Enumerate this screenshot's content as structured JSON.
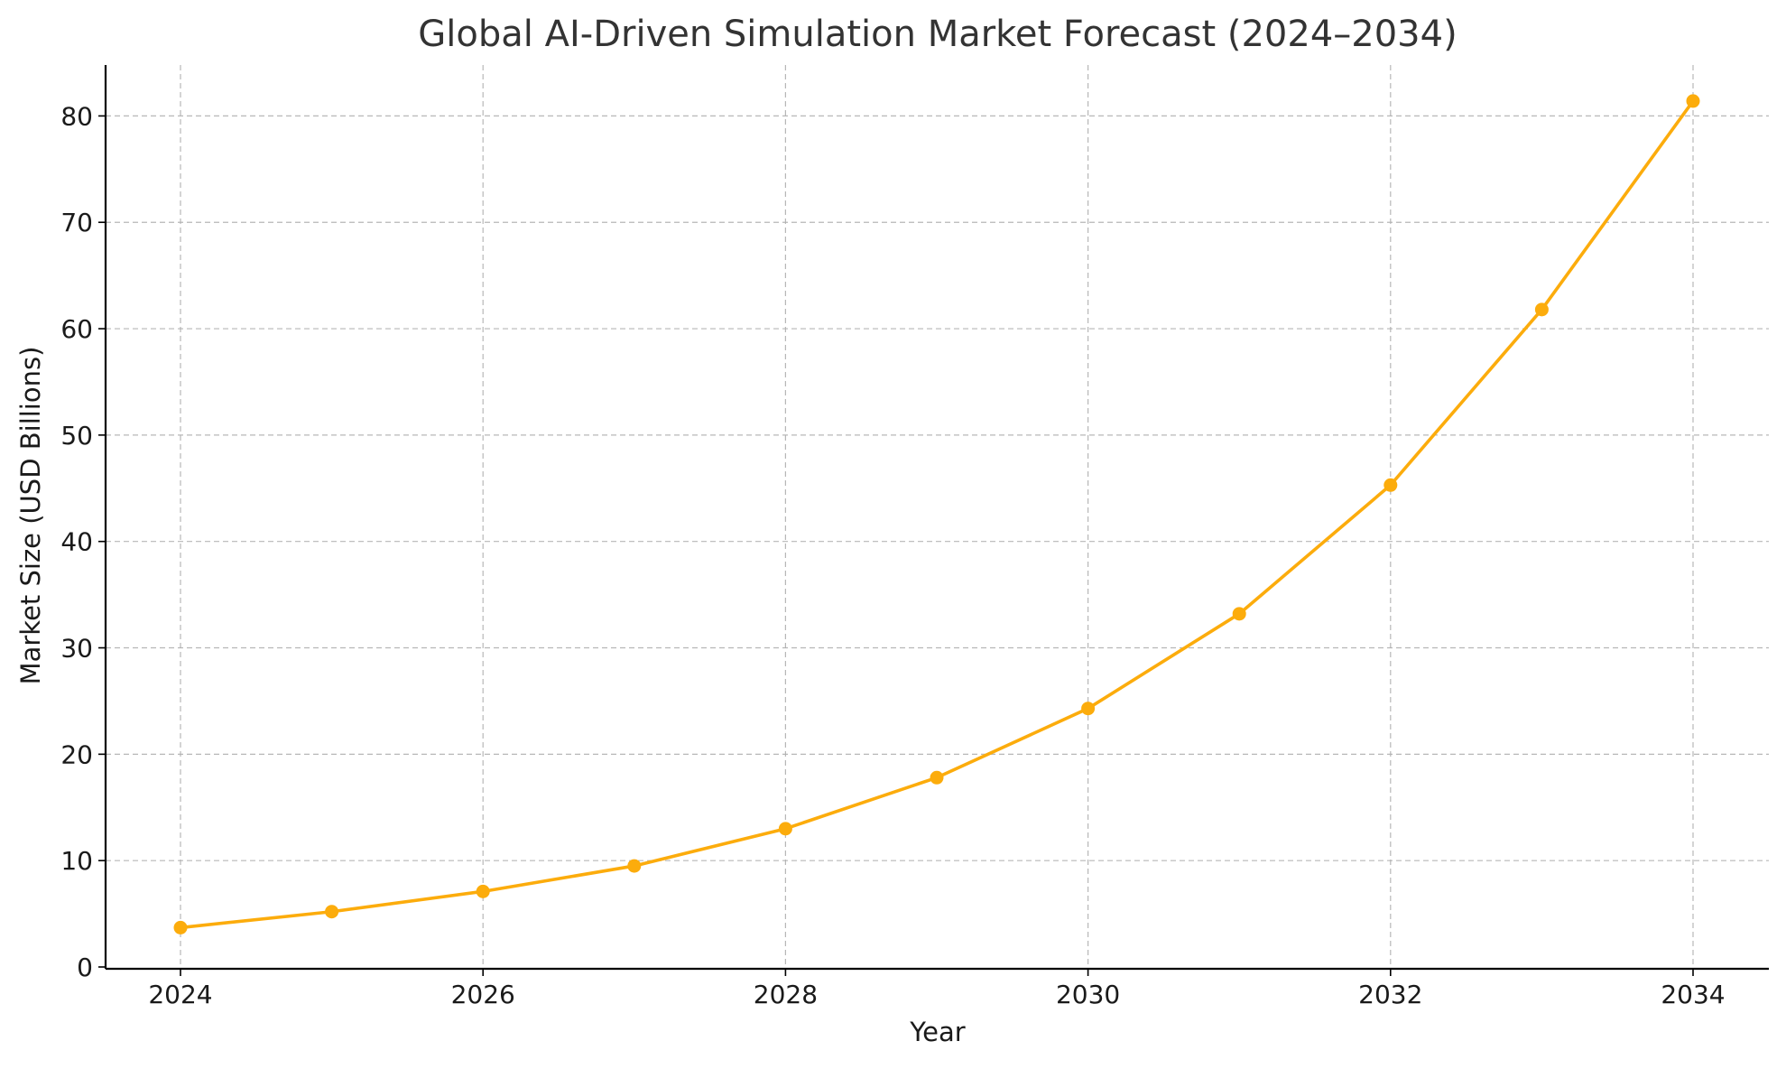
{
  "chart_data": {
    "type": "line",
    "title": "Global AI-Driven Simulation Market Forecast (2024–2034)",
    "xlabel": "Year",
    "ylabel": "Market Size (USD Billions)",
    "x": [
      2024,
      2025,
      2026,
      2027,
      2028,
      2029,
      2030,
      2031,
      2032,
      2033,
      2034
    ],
    "series": [
      {
        "values": [
          3.7,
          5.2,
          7.1,
          9.5,
          13.0,
          17.8,
          24.3,
          33.2,
          45.3,
          61.8,
          81.4
        ],
        "color": "#fcac0c",
        "marker": "circle"
      }
    ],
    "xlim": [
      2023.5,
      2034.5
    ],
    "ylim": [
      0,
      85
    ],
    "xticks": [
      "2024",
      "2026",
      "2028",
      "2030",
      "2032",
      "2034"
    ],
    "yticks": [
      "0",
      "10",
      "20",
      "30",
      "40",
      "50",
      "60",
      "70",
      "80"
    ],
    "grid": true,
    "legend": "none"
  }
}
